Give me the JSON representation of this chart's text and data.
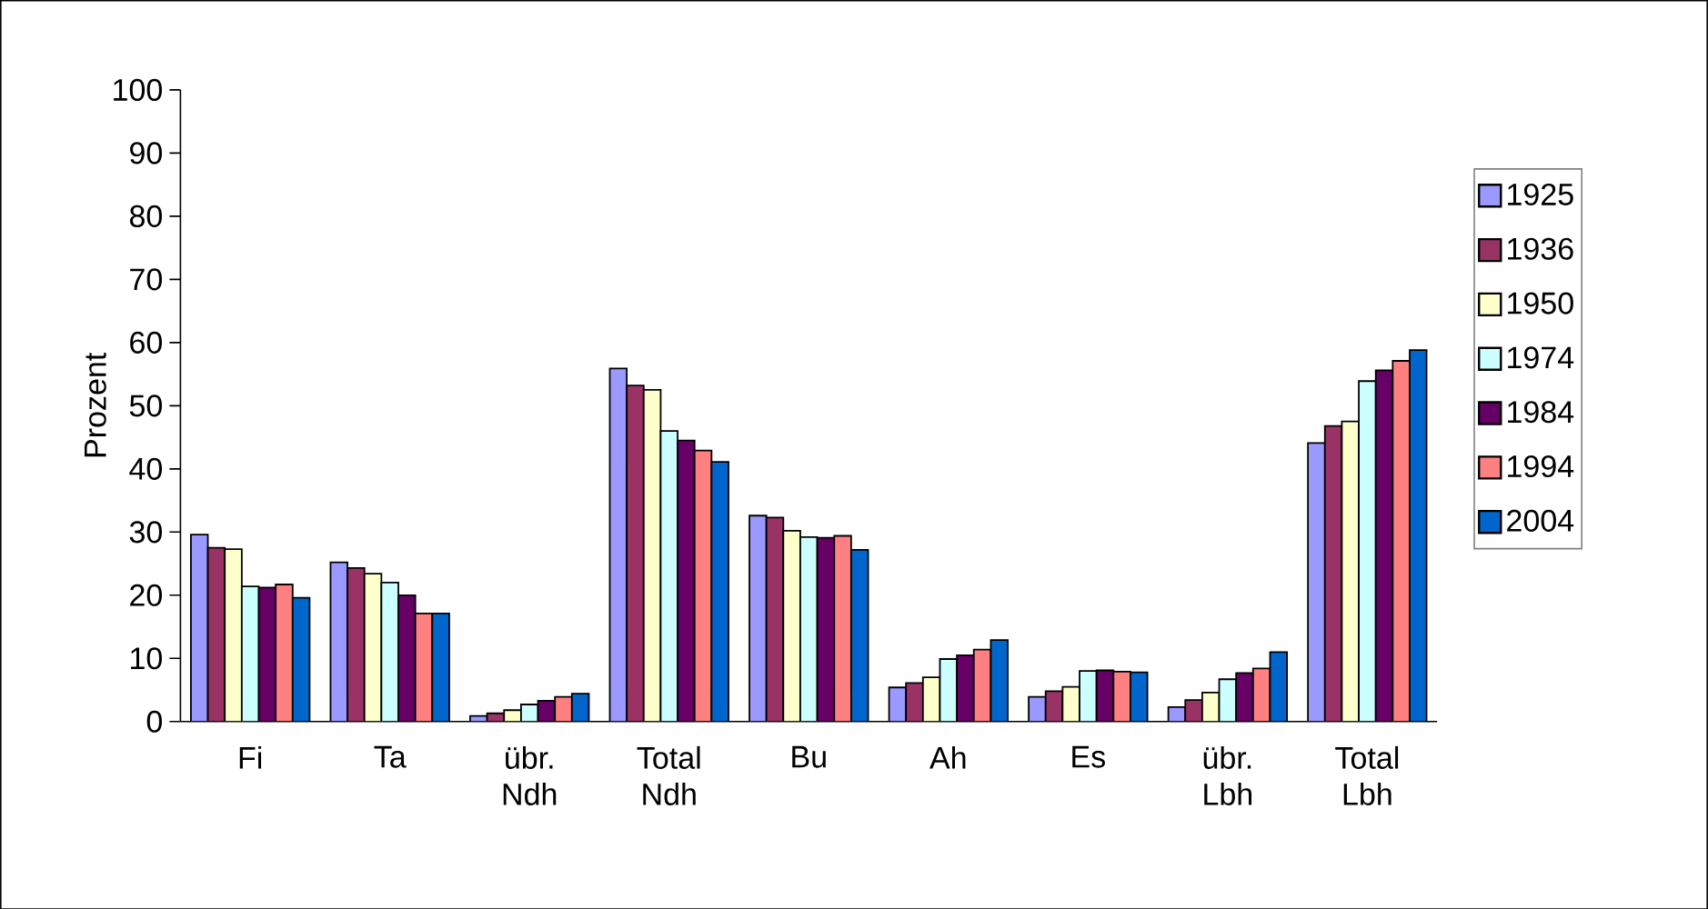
{
  "chart_data": {
    "type": "bar",
    "ylabel": "Prozent",
    "categories": [
      "Fi",
      "Ta",
      "übr. Ndh",
      "Total Ndh",
      "Bu",
      "Ah",
      "Es",
      "übr. Lbh",
      "Total Lbh"
    ],
    "series": [
      {
        "name": "1925",
        "color": "#9999ff",
        "values": [
          29.6,
          25.2,
          0.9,
          55.9,
          32.6,
          5.4,
          3.9,
          2.3,
          44.1
        ]
      },
      {
        "name": "1936",
        "color": "#993366",
        "values": [
          27.5,
          24.3,
          1.3,
          53.2,
          32.3,
          6.1,
          4.8,
          3.4,
          46.8
        ]
      },
      {
        "name": "1950",
        "color": "#ffffcc",
        "values": [
          27.3,
          23.4,
          1.8,
          52.5,
          30.2,
          7.0,
          5.5,
          4.6,
          47.5
        ]
      },
      {
        "name": "1974",
        "color": "#ccffff",
        "values": [
          21.4,
          22.0,
          2.7,
          46.0,
          29.2,
          9.9,
          8.0,
          6.7,
          53.9
        ]
      },
      {
        "name": "1984",
        "color": "#660066",
        "values": [
          21.2,
          20.0,
          3.3,
          44.5,
          29.1,
          10.5,
          8.1,
          7.7,
          55.6
        ]
      },
      {
        "name": "1994",
        "color": "#ff8080",
        "values": [
          21.7,
          17.1,
          3.9,
          42.9,
          29.4,
          11.4,
          7.9,
          8.4,
          57.1
        ]
      },
      {
        "name": "2004",
        "color": "#0066cc",
        "values": [
          19.6,
          17.1,
          4.4,
          41.1,
          27.2,
          12.9,
          7.8,
          11.0,
          58.8
        ]
      }
    ],
    "ylim": [
      0,
      100
    ],
    "yticks": [
      0,
      10,
      20,
      30,
      40,
      50,
      60,
      70,
      80,
      90,
      100
    ],
    "grid": false,
    "legend": "right"
  }
}
